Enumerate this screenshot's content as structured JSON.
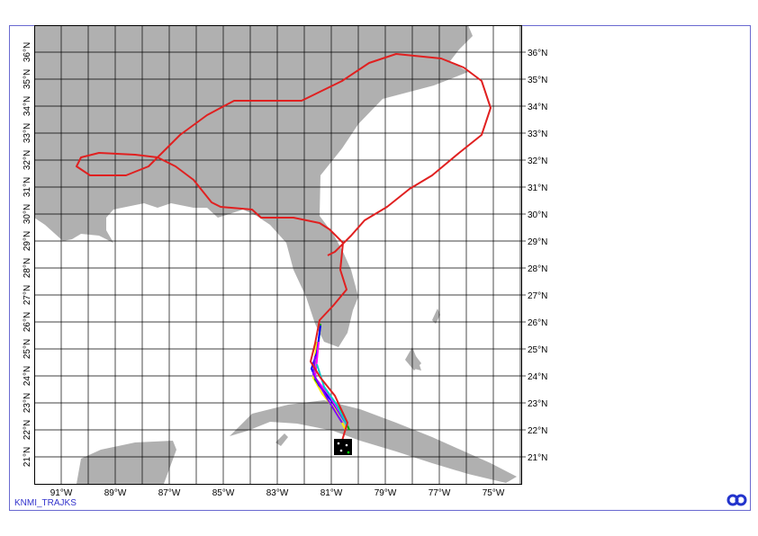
{
  "map": {
    "lat_labels": [
      "36°N",
      "35°N",
      "34°N",
      "33°N",
      "32°N",
      "31°N",
      "30°N",
      "29°N",
      "28°N",
      "27°N",
      "26°N",
      "25°N",
      "24°N",
      "23°N",
      "22°N",
      "21°N"
    ],
    "lon_labels": [
      "91°W",
      "89°W",
      "87°W",
      "85°W",
      "83°W",
      "81°W",
      "79°W",
      "77°W",
      "75°W"
    ],
    "footer": "KNMI_TRAJKS"
  }
}
